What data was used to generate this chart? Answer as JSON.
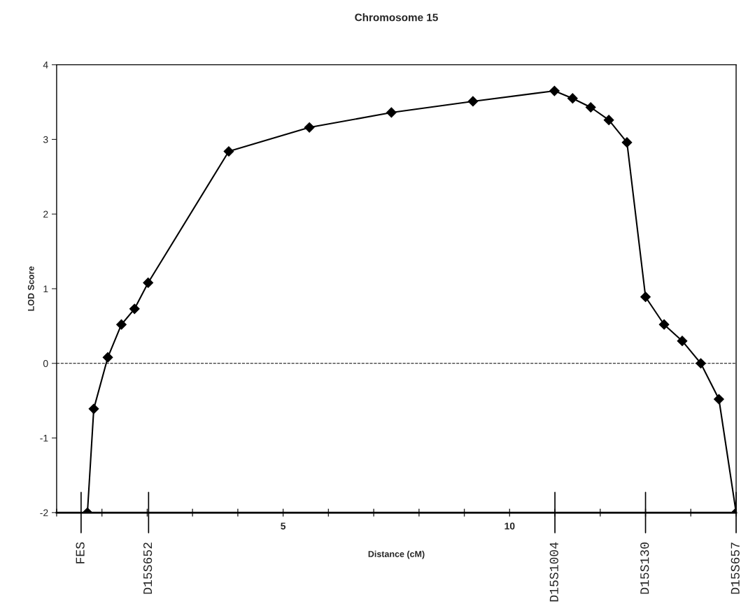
{
  "chart_data": {
    "type": "line",
    "title": "Chromosome 15",
    "xlabel": "Distance (cM)",
    "ylabel": "LOD Score",
    "x": [
      0.68,
      0.82,
      1.13,
      1.43,
      1.72,
      2.02,
      3.8,
      5.58,
      7.39,
      9.19,
      10.99,
      11.39,
      11.79,
      12.19,
      12.59,
      13.0,
      13.41,
      13.81,
      14.22,
      14.62,
      15.0
    ],
    "series": [
      {
        "color": "#000000",
        "values": [
          -2,
          -0.61,
          0.08,
          0.52,
          0.73,
          1.08,
          2.84,
          3.16,
          3.36,
          3.51,
          3.65,
          3.55,
          3.43,
          3.26,
          2.96,
          0.89,
          0.52,
          0.3,
          0.0,
          -0.48,
          -2
        ]
      }
    ],
    "xlim": [
      0,
      15
    ],
    "xticks": [
      {
        "value": 0,
        "label": null
      },
      {
        "value": 1,
        "label": null
      },
      {
        "value": 2,
        "label": null
      },
      {
        "value": 3,
        "label": null
      },
      {
        "value": 4,
        "label": null
      },
      5,
      {
        "value": 6,
        "label": null
      },
      {
        "value": 7,
        "label": null
      },
      {
        "value": 8,
        "label": null
      },
      {
        "value": 9,
        "label": null
      },
      10,
      {
        "value": 11,
        "label": null
      },
      {
        "value": 12,
        "label": null
      },
      {
        "value": 13,
        "label": null
      },
      {
        "value": 14,
        "label": null
      },
      {
        "value": 15,
        "label": null
      }
    ],
    "ylim": [
      -2,
      4
    ],
    "yticks": [
      -2,
      -1,
      0,
      1,
      2,
      3,
      4
    ],
    "ref_lines": [
      {
        "axis": "y",
        "value": 0,
        "label": null,
        "line_style": "dashed",
        "color": "#000000"
      },
      {
        "axis": "x",
        "value": 0.54,
        "label": "FES"
      },
      {
        "axis": "x",
        "value": 2.03,
        "label": "D15S652"
      },
      {
        "axis": "x",
        "value": 11.0,
        "label": "D15S1004"
      },
      {
        "axis": "x",
        "value": 13.0,
        "label": "D15S130"
      },
      {
        "axis": "x",
        "value": 15.0,
        "label": "D15S657"
      }
    ],
    "marker": "diamond",
    "line_style": "solid",
    "grid": false,
    "legend": false
  }
}
